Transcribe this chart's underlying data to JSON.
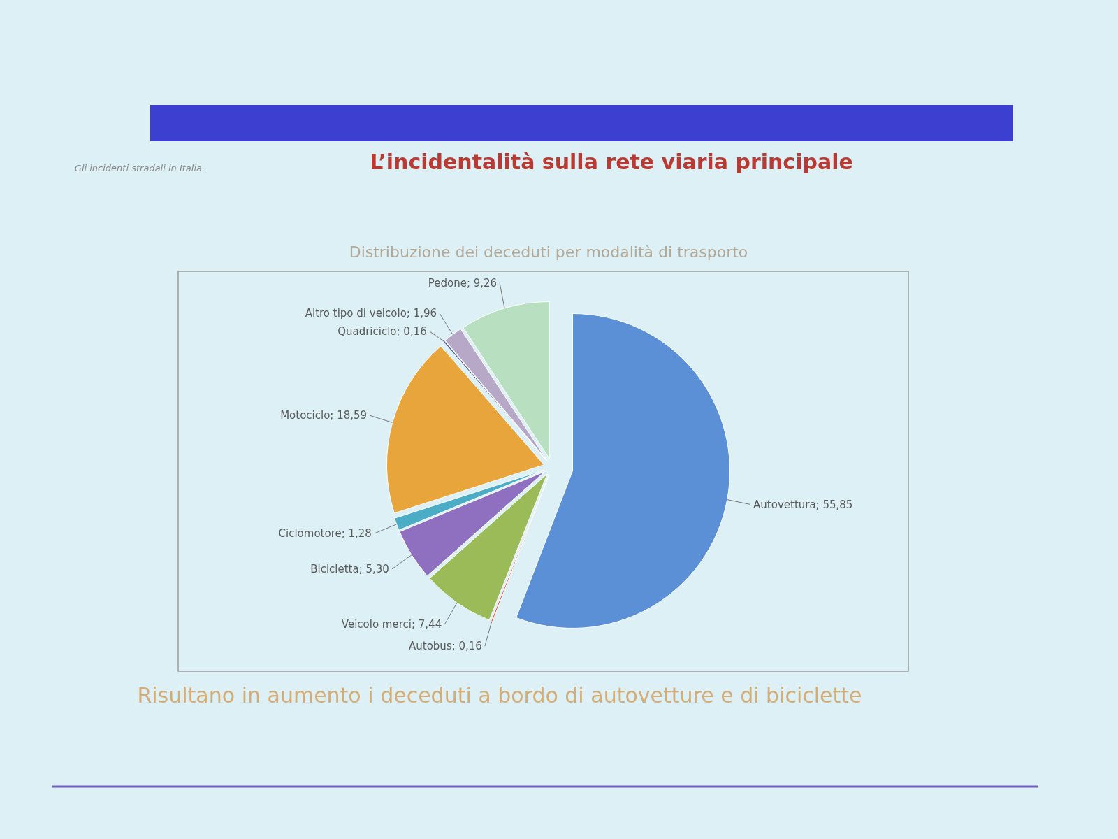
{
  "chart_data": {
    "type": "pie",
    "title": "L’incidentalità sulla rete viaria principale",
    "subtitle": "Distribuzione dei deceduti per modalità di trasporto",
    "categories": [
      "Autovettura",
      "Autobus",
      "Veicolo merci",
      "Bicicletta",
      "Ciclomotore",
      "Motociclo",
      "Quadriciclo",
      "Altro tipo di veicolo",
      "Pedone"
    ],
    "values": [
      55.85,
      0.16,
      7.44,
      5.3,
      1.28,
      18.59,
      0.16,
      1.96,
      9.26
    ],
    "value_labels": [
      "55,85",
      "0,16",
      "7,44",
      "5,30",
      "1,28",
      "18,59",
      "0,16",
      "1,96",
      "9,26"
    ],
    "colors": [
      "#5b8fd6",
      "#d9634a",
      "#9bbb59",
      "#8f6fc0",
      "#4bacc6",
      "#e8a53c",
      "#4f5fa0",
      "#b8a8c8",
      "#b8e0c0"
    ],
    "annotations": [
      "Gli incidenti stradali in Italia.",
      "Risultano in aumento i deceduti a bordo di autovetture e di biciclette"
    ]
  }
}
